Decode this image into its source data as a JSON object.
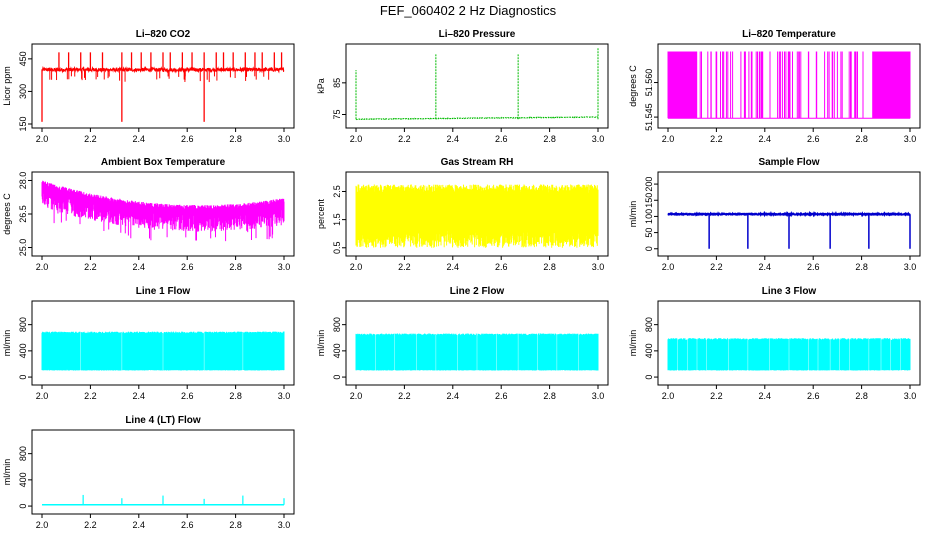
{
  "figure": {
    "title": "FEF_060402  2 Hz Diagnostics"
  },
  "chart_data": [
    {
      "type": "line",
      "title": "Li–820 CO2",
      "ylabel": "Licor ppm",
      "color": "#ff0000",
      "xlim": [
        2.0,
        3.0
      ],
      "ylim": [
        150,
        500
      ],
      "xticks": [
        "2.0",
        "2.2",
        "2.4",
        "2.6",
        "2.8",
        "3.0"
      ],
      "yticks": [
        "150",
        "300",
        "450"
      ],
      "baseline": 400,
      "noise": 8,
      "spikes_up": [
        2.07,
        2.11,
        2.16,
        2.2,
        2.25,
        2.33,
        2.37,
        2.41,
        2.45,
        2.5,
        2.53,
        2.58,
        2.62,
        2.67,
        2.72,
        2.75,
        2.79,
        2.84,
        2.88,
        2.91,
        2.96,
        2.99
      ],
      "spike_up_value": 480,
      "spikes_down": [
        2.0,
        2.33,
        2.67
      ],
      "spike_down_value": 160
    },
    {
      "type": "line",
      "title": "Li–820 Pressure",
      "ylabel": "kPa",
      "color": "#00bb00",
      "xlim": [
        2.0,
        3.0
      ],
      "ylim": [
        72,
        96
      ],
      "xticks": [
        "2.0",
        "2.2",
        "2.4",
        "2.6",
        "2.8",
        "3.0"
      ],
      "yticks": [
        "75",
        "85"
      ],
      "baseline_start": 73.5,
      "baseline_end": 74.2,
      "noise": 0.2,
      "spikes_up": [
        2.0,
        2.33,
        2.67,
        3.0
      ],
      "spike_values": [
        89,
        94,
        94,
        96
      ]
    },
    {
      "type": "line",
      "title": "Li–820 Temperature",
      "ylabel": "degrees C",
      "color": "#ff00ff",
      "xlim": [
        2.0,
        3.0
      ],
      "ylim": [
        51.542,
        51.575
      ],
      "xticks": [
        "2.0",
        "2.2",
        "2.4",
        "2.6",
        "2.8",
        "3.0"
      ],
      "yticks": [
        "51.545",
        "51.560"
      ],
      "levels": [
        51.5445,
        51.5735
      ],
      "high_until": 2.12,
      "sparse_from": 2.13,
      "sparse_to": 2.85
    },
    {
      "type": "line",
      "title": "Ambient Box Temperature",
      "ylabel": "degrees C",
      "color": "#ff00ff",
      "xlim": [
        2.0,
        3.0
      ],
      "ylim": [
        24.8,
        28.2
      ],
      "xticks": [
        "2.0",
        "2.2",
        "2.4",
        "2.6",
        "2.8",
        "3.0"
      ],
      "yticks": [
        "25.0",
        "26.5",
        "28.0"
      ],
      "upper_start": 27.9,
      "upper_min": 26.8,
      "upper_min_x": 2.65,
      "upper_end": 27.9,
      "band_depth": 0.8
    },
    {
      "type": "line",
      "title": "Gas Stream RH",
      "ylabel": "percent",
      "color": "#ffff00",
      "xlim": [
        2.0,
        3.0
      ],
      "ylim": [
        0.35,
        3.05
      ],
      "xticks": [
        "2.0",
        "2.2",
        "2.4",
        "2.6",
        "2.8",
        "3.0"
      ],
      "yticks": [
        "0.5",
        "1.5",
        "2.5"
      ],
      "band_low": 0.5,
      "band_high": 2.75
    },
    {
      "type": "line",
      "title": "Sample Flow",
      "ylabel": "ml/min",
      "color": "#0000cc",
      "xlim": [
        2.0,
        3.0
      ],
      "ylim": [
        -10,
        225
      ],
      "xticks": [
        "2.0",
        "2.2",
        "2.4",
        "2.6",
        "2.8",
        "3.0"
      ],
      "yticks": [
        "0",
        "50",
        "100",
        "150",
        "200"
      ],
      "baseline": 107,
      "noise": 3,
      "dips": [
        2.17,
        2.33,
        2.5,
        2.67,
        2.83,
        3.0
      ],
      "dip_value": 0
    },
    {
      "type": "area",
      "title": "Line 1 Flow",
      "ylabel": "ml/min",
      "color": "#00ffff",
      "xlim": [
        2.0,
        3.0
      ],
      "ylim": [
        -60,
        1100
      ],
      "xticks": [
        "2.0",
        "2.2",
        "2.4",
        "2.6",
        "2.8",
        "3.0"
      ],
      "yticks": [
        "0",
        "400",
        "800"
      ],
      "band_low": 100,
      "band_high": 680,
      "gaps": [
        2.16,
        2.33,
        2.5,
        2.67,
        2.83
      ]
    },
    {
      "type": "area",
      "title": "Line 2 Flow",
      "ylabel": "ml/min",
      "color": "#00ffff",
      "xlim": [
        2.0,
        3.0
      ],
      "ylim": [
        -60,
        1100
      ],
      "xticks": [
        "2.0",
        "2.2",
        "2.4",
        "2.6",
        "2.8",
        "3.0"
      ],
      "yticks": [
        "0",
        "400",
        "800"
      ],
      "band_low": 100,
      "band_high": 650,
      "gaps": [
        2.08,
        2.16,
        2.25,
        2.33,
        2.42,
        2.5,
        2.58,
        2.67,
        2.75,
        2.83,
        2.92
      ]
    },
    {
      "type": "area",
      "title": "Line 3 Flow",
      "ylabel": "ml/min",
      "color": "#00ffff",
      "xlim": [
        2.0,
        3.0
      ],
      "ylim": [
        -60,
        1100
      ],
      "xticks": [
        "2.0",
        "2.2",
        "2.4",
        "2.6",
        "2.8",
        "3.0"
      ],
      "yticks": [
        "0",
        "400",
        "800"
      ],
      "band_low": 100,
      "band_high": 580,
      "gaps": [
        2.04,
        2.08,
        2.12,
        2.16,
        2.25,
        2.33,
        2.42,
        2.5,
        2.58,
        2.62,
        2.67,
        2.71,
        2.75,
        2.83,
        2.88,
        2.92,
        2.96
      ]
    },
    {
      "type": "line",
      "title": "Line 4 (LT) Flow",
      "ylabel": "ml/min",
      "color": "#00ffff",
      "xlim": [
        2.0,
        3.0
      ],
      "ylim": [
        -60,
        1100
      ],
      "xticks": [
        "2.0",
        "2.2",
        "2.4",
        "2.6",
        "2.8",
        "3.0"
      ],
      "yticks": [
        "0",
        "400",
        "800"
      ],
      "baseline": 20,
      "spikes_up": [
        2.17,
        2.33,
        2.5,
        2.67,
        2.83,
        3.0
      ],
      "spike_values": [
        170,
        120,
        160,
        110,
        160,
        120
      ]
    }
  ]
}
